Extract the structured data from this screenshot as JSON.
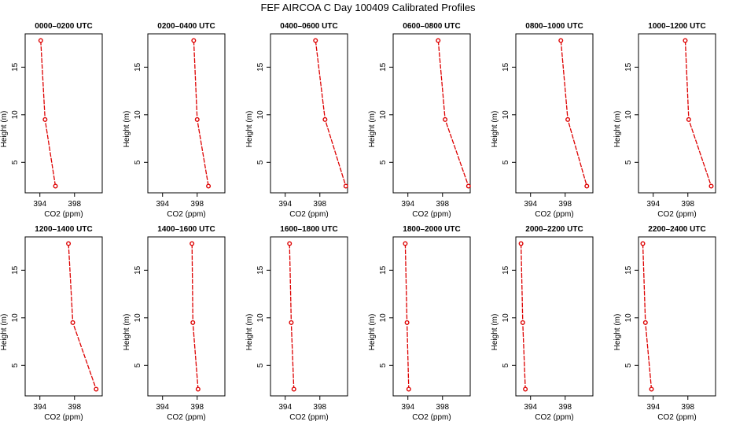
{
  "figure": {
    "title": "FEF AIRCOA C  Day 100409  Calibrated Profiles"
  },
  "chart_data": {
    "type": "line",
    "xlabel": "CO2 (ppm)",
    "ylabel": "Height (m)",
    "xlim": [
      392.3,
      401.2
    ],
    "ylim": [
      1.8,
      18.5
    ],
    "xticks": [
      394,
      398
    ],
    "yticks": [
      5,
      10,
      15
    ],
    "series_color": "#dd0000",
    "heights": [
      17.8,
      9.5,
      2.5
    ],
    "panels": [
      {
        "title": "0000–0200 UTC",
        "co2": [
          394.1,
          394.6,
          395.8
        ]
      },
      {
        "title": "0200–0400 UTC",
        "co2": [
          397.6,
          398.0,
          399.3
        ]
      },
      {
        "title": "0400–0600 UTC",
        "co2": [
          397.5,
          398.6,
          401.0
        ]
      },
      {
        "title": "0600–0800 UTC",
        "co2": [
          397.5,
          398.3,
          401.0
        ]
      },
      {
        "title": "0800–1000 UTC",
        "co2": [
          397.5,
          398.3,
          400.5
        ]
      },
      {
        "title": "1000–1200 UTC",
        "co2": [
          397.7,
          398.1,
          400.7
        ]
      },
      {
        "title": "1200–1400 UTC",
        "co2": [
          397.3,
          397.8,
          400.5
        ]
      },
      {
        "title": "1400–1600 UTC",
        "co2": [
          397.4,
          397.5,
          398.1
        ]
      },
      {
        "title": "1600–1800 UTC",
        "co2": [
          394.5,
          394.7,
          395.0
        ]
      },
      {
        "title": "1800–2000 UTC",
        "co2": [
          393.7,
          393.9,
          394.1
        ]
      },
      {
        "title": "2000–2200 UTC",
        "co2": [
          392.9,
          393.1,
          393.4
        ]
      },
      {
        "title": "2200–2400 UTC",
        "co2": [
          392.8,
          393.1,
          393.8
        ]
      }
    ]
  }
}
